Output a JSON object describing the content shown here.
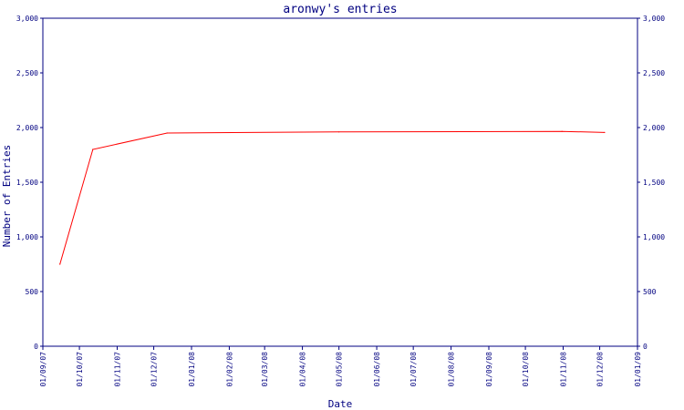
{
  "chart_data": {
    "type": "line",
    "title": "aronwy's entries",
    "xlabel": "Date",
    "ylabel": "Number of Entries",
    "ylim": [
      0,
      3000
    ],
    "yticks": [
      0,
      500,
      1000,
      1500,
      2000,
      2500,
      3000
    ],
    "ytick_labels": [
      "0",
      "500",
      "1,000",
      "1,500",
      "2,000",
      "2,500",
      "3,000"
    ],
    "xlim": [
      "2007-09-01",
      "2009-01-01"
    ],
    "x_tick_dates": [
      "2007-09-01",
      "2007-10-01",
      "2007-11-01",
      "2007-12-01",
      "2008-01-01",
      "2008-02-01",
      "2008-03-01",
      "2008-04-01",
      "2008-05-01",
      "2008-06-01",
      "2008-07-01",
      "2008-08-01",
      "2008-09-01",
      "2008-10-01",
      "2008-11-01",
      "2008-12-01",
      "2009-01-01"
    ],
    "x_tick_labels": [
      "01/09/07",
      "01/10/07",
      "01/11/07",
      "01/12/07",
      "01/01/08",
      "01/02/08",
      "01/03/08",
      "01/04/08",
      "01/05/08",
      "01/06/08",
      "01/07/08",
      "01/08/08",
      "01/09/08",
      "01/10/08",
      "01/11/08",
      "01/12/08",
      "01/01/09"
    ],
    "grid": false,
    "series": [
      {
        "color": "#ff0000",
        "x": [
          "2007-09-15",
          "2007-10-12",
          "2007-12-12",
          "2008-05-01",
          "2008-10-31",
          "2008-12-05"
        ],
        "values": [
          750,
          1800,
          1950,
          1960,
          1965,
          1955
        ]
      }
    ],
    "colors": {
      "axis": "#000080",
      "text": "#000080",
      "line": "#ff0000"
    }
  }
}
